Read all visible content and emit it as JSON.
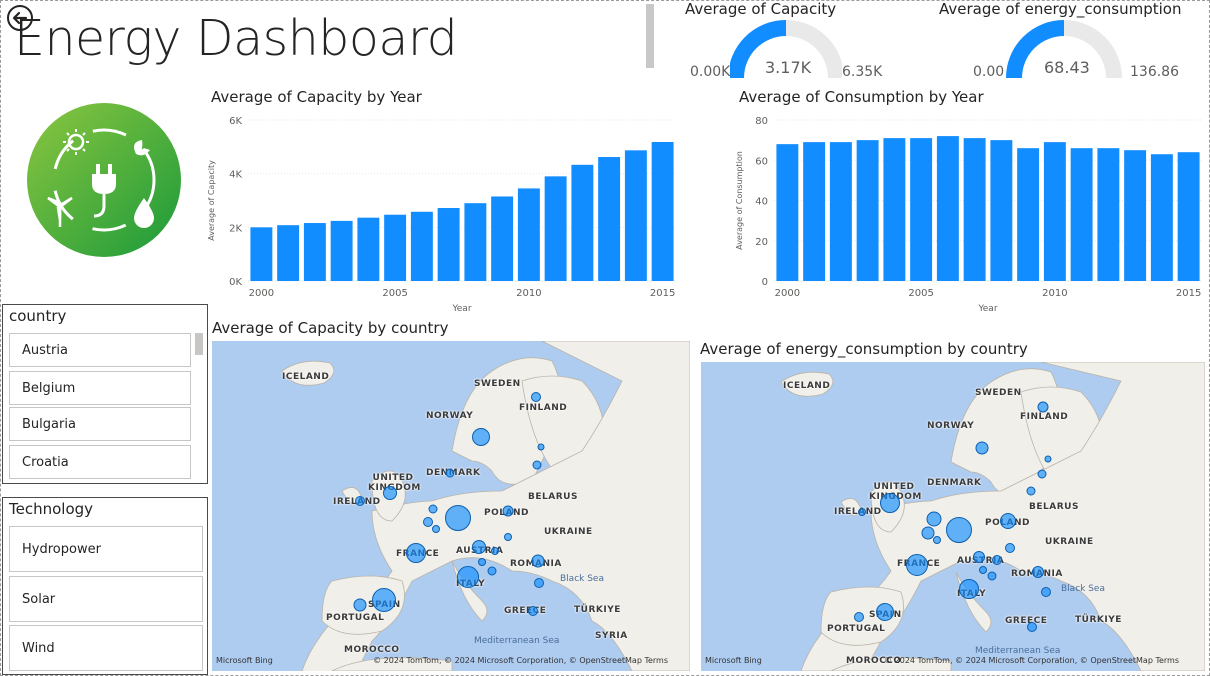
{
  "dashboard": {
    "title": "Energy Dashboard"
  },
  "colors": {
    "accent": "#118dff",
    "gauge_track": "#e9e9e9",
    "logo_green": "#3aa335",
    "map_water": "#aecbf0",
    "map_land": "#f1efe9"
  },
  "icons": {
    "back": "back-arrow-icon",
    "logo": "energy-logo"
  },
  "gauges": [
    {
      "title": "Average of Capacity",
      "min": "0.00K",
      "max": "6.35K",
      "value_label": "3.17K",
      "fraction": 0.5
    },
    {
      "title": "Average of energy_consumption",
      "min": "0.00",
      "max": "136.86",
      "value_label": "68.43",
      "fraction": 0.5
    }
  ],
  "chart_data": [
    {
      "type": "bar",
      "title": "Average of Capacity by Year",
      "xlabel": "Year",
      "ylabel": "Average of Capacity",
      "categories": [
        2000,
        2001,
        2002,
        2003,
        2004,
        2005,
        2006,
        2007,
        2008,
        2009,
        2010,
        2011,
        2012,
        2013,
        2014,
        2015
      ],
      "values": [
        2000,
        2080,
        2160,
        2240,
        2360,
        2470,
        2580,
        2720,
        2900,
        3150,
        3450,
        3900,
        4330,
        4620,
        4870,
        5180
      ],
      "ylim": [
        0,
        6000
      ],
      "yticks": [
        "0K",
        "2K",
        "4K",
        "6K"
      ],
      "xticks": [
        "2000",
        "2005",
        "2010",
        "2015"
      ],
      "grid": true
    },
    {
      "type": "bar",
      "title": "Average of Consumption by Year",
      "xlabel": "Year",
      "ylabel": "Average of Consumption",
      "categories": [
        2000,
        2001,
        2002,
        2003,
        2004,
        2005,
        2006,
        2007,
        2008,
        2009,
        2010,
        2011,
        2012,
        2013,
        2014,
        2015
      ],
      "values": [
        68,
        69,
        69,
        70,
        71,
        71,
        72,
        71,
        70,
        66,
        69,
        66,
        66,
        65,
        63,
        64
      ],
      "ylim": [
        0,
        80
      ],
      "yticks": [
        "0",
        "20",
        "40",
        "60",
        "80"
      ],
      "xticks": [
        "2000",
        "2005",
        "2010",
        "2015"
      ],
      "grid": true
    }
  ],
  "slicers": {
    "country": {
      "header": "country",
      "items": [
        "Austria",
        "Belgium",
        "Bulgaria",
        "Croatia"
      ]
    },
    "technology": {
      "header": "Technology",
      "items": [
        "Hydropower",
        "Solar",
        "Wind"
      ]
    }
  },
  "maps": [
    {
      "title": "Average of Capacity by country",
      "labels": [
        "ICELAND",
        "SWEDEN",
        "FINLAND",
        "NORWAY",
        "UNITED KINGDOM",
        "DENMARK",
        "IRELAND",
        "BELARUS",
        "POLAND",
        "UKRAINE",
        "FRANCE",
        "AUSTRIA",
        "ROMANIA",
        "ITALY",
        "SPAIN",
        "PORTUGAL",
        "GREECE",
        "TÜRKIYE",
        "SYRIA",
        "MOROCCO"
      ],
      "seas": [
        "Black Sea",
        "Mediterranean Sea"
      ],
      "bing": "Microsoft Bing",
      "attribution": "© 2024 TomTom, © 2024 Microsoft Corporation, © OpenStreetMap  Terms"
    },
    {
      "title": "Average of energy_consumption by country",
      "labels": [
        "ICELAND",
        "SWEDEN",
        "FINLAND",
        "NORWAY",
        "UNITED KINGDOM",
        "DENMARK",
        "IRELAND",
        "BELARUS",
        "POLAND",
        "UKRAINE",
        "FRANCE",
        "AUSTRIA",
        "ROMANIA",
        "ITALY",
        "SPAIN",
        "PORTUGAL",
        "GREECE",
        "TÜRKIYE",
        "MOROCCO"
      ],
      "seas": [
        "Black Sea",
        "Mediterranean Sea"
      ],
      "bing": "Microsoft Bing",
      "attribution": "© 2024 TomTom, © 2024 Microsoft Corporation, © OpenStreetMap  Terms"
    }
  ]
}
